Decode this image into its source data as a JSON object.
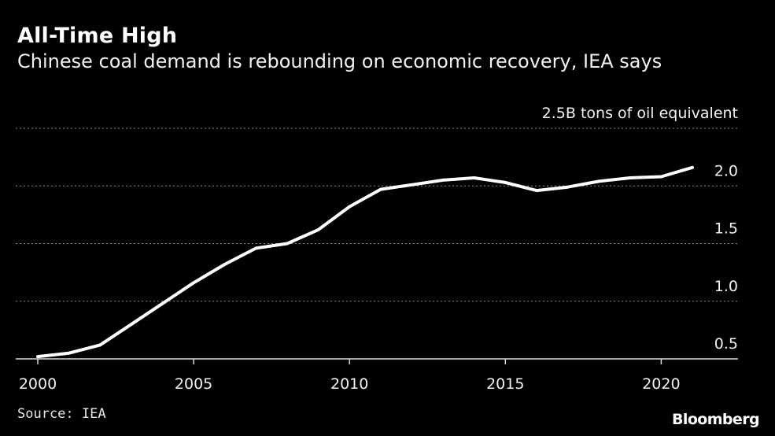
{
  "title": "All-Time High",
  "subtitle": "Chinese coal demand is rebounding on economic recovery, IEA says",
  "source": "Source: IEA",
  "brand": "Bloomberg",
  "colors": {
    "background": "#000000",
    "line": "#ffffff",
    "grid": "#8c8c8c",
    "text": "#ffffff"
  },
  "chart_data": {
    "type": "line",
    "title": "All-Time High",
    "subtitle": "Chinese coal demand is rebounding on economic recovery, IEA says",
    "xlabel": "",
    "ylabel": "tons of oil equivalent",
    "unit_label": "2.5B tons of oil equivalent",
    "xlim": [
      2000,
      2022
    ],
    "ylim": [
      0.5,
      2.5
    ],
    "grid": true,
    "x_ticks": [
      2000,
      2005,
      2010,
      2015,
      2020
    ],
    "x_tick_labels": [
      "2000",
      "2005",
      "2010",
      "2015",
      "2020"
    ],
    "y_ticks": [
      0.5,
      1.0,
      1.5,
      2.0,
      2.5
    ],
    "y_tick_labels": [
      "0.5",
      "1.0",
      "1.5",
      "2.0",
      "2.5B tons of oil equivalent"
    ],
    "series": [
      {
        "name": "Chinese coal demand",
        "x": [
          2000,
          2001,
          2002,
          2003,
          2004,
          2005,
          2006,
          2007,
          2008,
          2009,
          2010,
          2011,
          2012,
          2013,
          2014,
          2015,
          2016,
          2017,
          2018,
          2019,
          2020,
          2021
        ],
        "values": [
          0.52,
          0.55,
          0.62,
          0.8,
          0.98,
          1.16,
          1.32,
          1.46,
          1.5,
          1.62,
          1.82,
          1.97,
          2.01,
          2.05,
          2.07,
          2.03,
          1.96,
          1.99,
          2.04,
          2.07,
          2.08,
          2.16
        ]
      }
    ]
  }
}
